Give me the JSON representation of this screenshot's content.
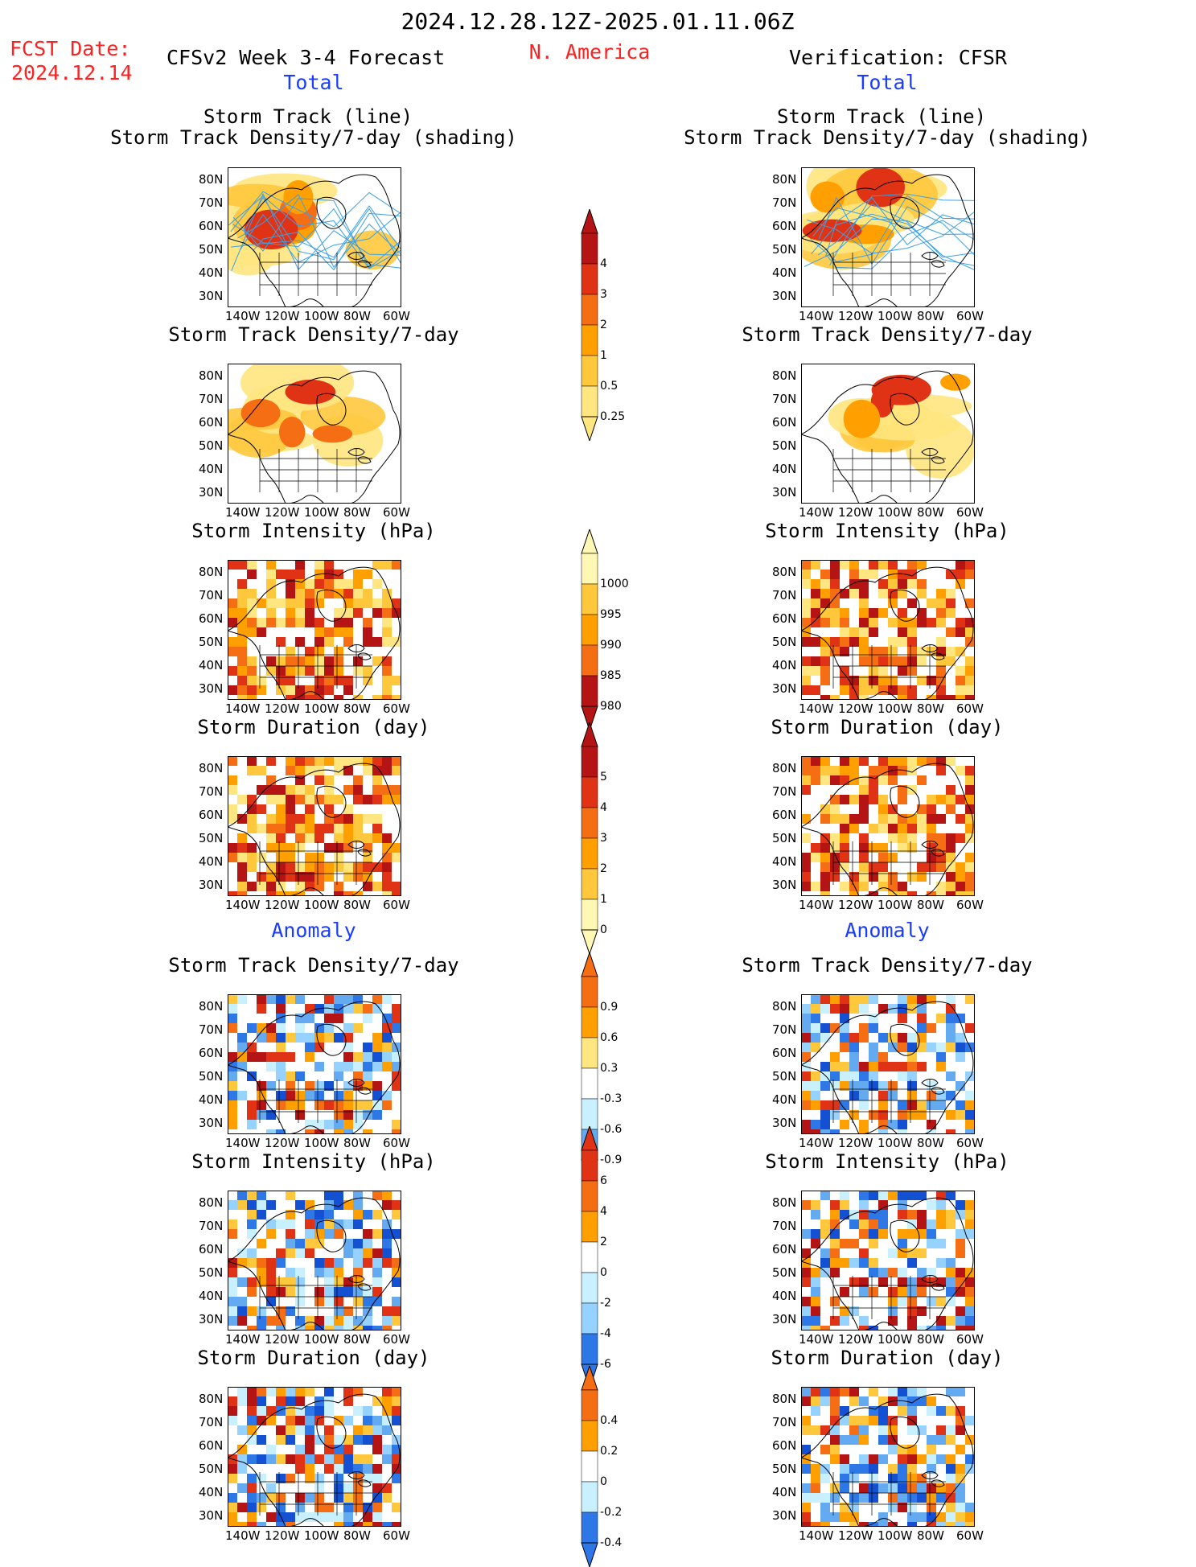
{
  "header": {
    "period": "2024.12.28.12Z-2025.01.11.06Z",
    "fcst_label": "FCST Date:",
    "fcst_date": "2024.12.14",
    "left_title": "CFSv2 Week 3-4 Forecast",
    "region": "N. America",
    "right_title": "Verification: CFSR",
    "total_left": "Total",
    "total_right": "Total",
    "anomaly_left": "Anomaly",
    "anomaly_right": "Anomaly"
  },
  "panel_titles": {
    "track_line": "Storm Track (line)",
    "track_shading": "Storm Track Density/7-day (shading)",
    "density": "Storm Track Density/7-day",
    "intensity": "Storm Intensity (hPa)",
    "duration": "Storm Duration (day)"
  },
  "axes": {
    "lat_ticks": [
      "80N",
      "70N",
      "60N",
      "50N",
      "40N",
      "30N"
    ],
    "lon_ticks": [
      "140W",
      "120W",
      "100W",
      "80W",
      "60W"
    ]
  },
  "colorbars": {
    "density_total": [
      "4",
      "3",
      "2",
      "1",
      "0.5",
      "0.25"
    ],
    "intensity_total": [
      "1000",
      "995",
      "990",
      "985",
      "980"
    ],
    "duration_total": [
      "5",
      "4",
      "3",
      "2",
      "1",
      "0"
    ],
    "density_anom": [
      "0.9",
      "0.6",
      "0.3",
      "-0.3",
      "-0.6",
      "-0.9"
    ],
    "intensity_anom": [
      "6",
      "4",
      "2",
      "0",
      "-2",
      "-4",
      "-6"
    ],
    "duration_anom": [
      "0.4",
      "0.2",
      "0",
      "-0.2",
      "-0.4"
    ]
  },
  "colors": {
    "warm": [
      "#fff8b4",
      "#ffe680",
      "#ffc83c",
      "#ffa000",
      "#f56e14",
      "#e03214",
      "#b41414"
    ],
    "cool": [
      "#c8f0ff",
      "#96d2ff",
      "#64aaf0",
      "#2d78e6",
      "#1450d2"
    ],
    "track_line": "#3aa0e8"
  }
}
